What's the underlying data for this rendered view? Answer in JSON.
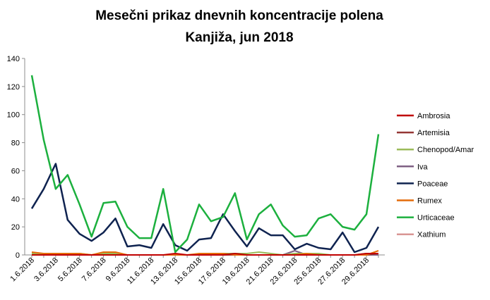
{
  "chart_data": {
    "type": "line",
    "title": "Mesečni prikaz dnevnih koncentracije polena",
    "subtitle": "Kanjiža, jun 2018",
    "xlabel": "",
    "ylabel": "",
    "ylim": [
      0,
      140
    ],
    "yticks": [
      0,
      20,
      40,
      60,
      80,
      100,
      120,
      140
    ],
    "grid": false,
    "legend_position": "right",
    "x": [
      "1.6.2018",
      "2.6.2018",
      "3.6.2018",
      "4.6.2018",
      "5.6.2018",
      "6.6.2018",
      "7.6.2018",
      "8.6.2018",
      "9.6.2018",
      "10.6.2018",
      "11.6.2018",
      "12.6.2018",
      "13.6.2018",
      "14.6.2018",
      "15.6.2018",
      "16.6.2018",
      "17.6.2018",
      "18.6.2018",
      "19.6.2018",
      "20.6.2018",
      "21.6.2018",
      "22.6.2018",
      "23.6.2018",
      "24.6.2018",
      "25.6.2018",
      "26.6.2018",
      "27.6.2018",
      "28.6.2018",
      "29.6.2018",
      "30.6.2018"
    ],
    "x_tick_labels": [
      "1.6.2018",
      "3.6.2018",
      "5.6.2018",
      "7.6.2018",
      "9.6.2018",
      "11.6.2018",
      "13.6.2018",
      "15.6.2018",
      "17.6.2018",
      "19.6.2018",
      "21.6.2018",
      "23.6.2018",
      "25.6.2018",
      "27.6.2018",
      "29.6.2018"
    ],
    "series": [
      {
        "name": "Ambrosia",
        "color": "#c00000",
        "values": [
          0,
          0,
          0,
          0,
          0,
          0,
          0,
          0,
          0,
          0,
          0,
          0,
          1,
          0,
          0,
          0,
          0,
          1,
          0,
          0,
          0,
          0,
          0,
          0,
          0,
          0,
          0,
          0,
          1,
          1
        ]
      },
      {
        "name": "Artemisia",
        "color": "#953735",
        "values": [
          0,
          0,
          0,
          0,
          0,
          0,
          0,
          0,
          0,
          0,
          0,
          0,
          0,
          0,
          0,
          0,
          0,
          0,
          0,
          0,
          0,
          0,
          0,
          0,
          0,
          0,
          0,
          0,
          0,
          1
        ]
      },
      {
        "name": "Chenopod/Amar",
        "color": "#9bbb59",
        "values": [
          1,
          1,
          1,
          1,
          1,
          0,
          1,
          1,
          0,
          0,
          0,
          0,
          0,
          0,
          0,
          1,
          1,
          1,
          1,
          2,
          1,
          0,
          1,
          1,
          1,
          0,
          0,
          0,
          1,
          1
        ]
      },
      {
        "name": "Iva",
        "color": "#7f6084",
        "values": [
          0,
          0,
          0,
          0,
          0,
          0,
          0,
          0,
          0,
          0,
          0,
          0,
          0,
          0,
          0,
          0,
          0,
          0,
          0,
          0,
          0,
          0,
          3,
          0,
          0,
          0,
          0,
          0,
          0,
          0
        ]
      },
      {
        "name": "Poaceae",
        "color": "#0f2350",
        "values": [
          33,
          47,
          65,
          25,
          15,
          10,
          16,
          26,
          6,
          7,
          5,
          22,
          7,
          3,
          11,
          12,
          29,
          17,
          6,
          19,
          14,
          14,
          4,
          8,
          5,
          4,
          16,
          2,
          5,
          20
        ]
      },
      {
        "name": "Rumex",
        "color": "#e46c0a",
        "values": [
          2,
          1,
          1,
          1,
          1,
          0,
          2,
          2,
          0,
          0,
          0,
          0,
          0,
          0,
          1,
          1,
          1,
          0,
          0,
          0,
          0,
          0,
          0,
          1,
          0,
          0,
          0,
          0,
          0,
          3
        ]
      },
      {
        "name": "Urticaceae",
        "color": "#1cb03e",
        "values": [
          128,
          82,
          47,
          57,
          36,
          13,
          37,
          38,
          20,
          12,
          12,
          47,
          2,
          11,
          36,
          24,
          27,
          44,
          11,
          29,
          36,
          21,
          13,
          14,
          26,
          29,
          20,
          18,
          29,
          86
        ]
      },
      {
        "name": "Xathium",
        "color": "#d99694",
        "values": [
          0,
          0,
          0,
          0,
          0,
          0,
          0,
          0,
          0,
          0,
          0,
          0,
          0,
          0,
          0,
          0,
          0,
          0,
          0,
          0,
          0,
          0,
          0,
          0,
          0,
          0,
          0,
          0,
          0,
          0
        ]
      }
    ]
  }
}
